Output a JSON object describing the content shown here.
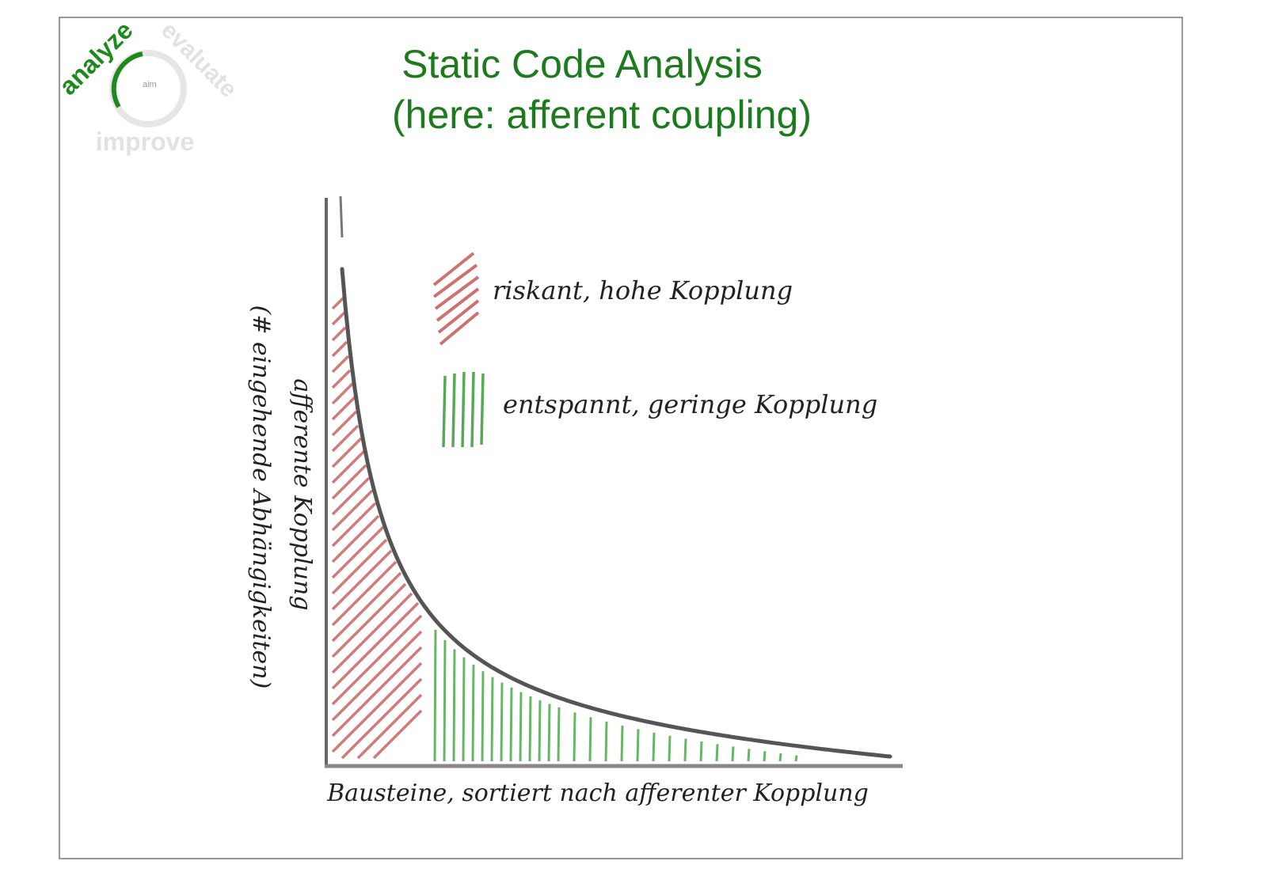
{
  "logo": {
    "words": [
      "analyze",
      "evaluate",
      "improve"
    ],
    "center": "aim"
  },
  "title": "Static Code Analysis",
  "subtitle": "(here: afferent coupling)",
  "legend": [
    {
      "label": "riskant, hohe Kopplung"
    },
    {
      "label": "entspannt, geringe Kopplung"
    }
  ],
  "x_axis_label": "Bausteine, sortiert nach afferenter Kopplung",
  "y_axis_label": "afferente Kopplung",
  "y_axis_sublabel": "(# eingehende Abhängigkeiten)"
}
